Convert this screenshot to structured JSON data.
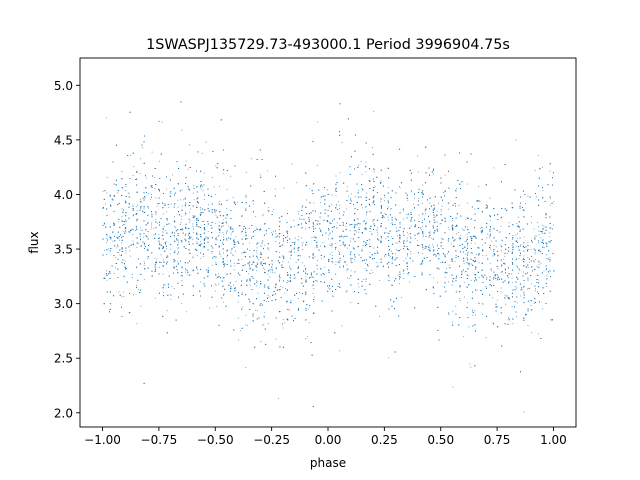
{
  "chart_data": {
    "type": "scatter",
    "title": "1SWASPJ135729.73-493000.1 Period 3996904.75s",
    "xlabel": "phase",
    "ylabel": "flux",
    "xlim": [
      -1.1,
      1.1
    ],
    "ylim": [
      1.87,
      5.25
    ],
    "xticks": [
      -1.0,
      -0.75,
      -0.5,
      -0.25,
      0.0,
      0.25,
      0.5,
      0.75,
      1.0
    ],
    "xtick_labels": [
      "−1.00",
      "−0.75",
      "−0.50",
      "−0.25",
      "0.00",
      "0.25",
      "0.50",
      "0.75",
      "1.00"
    ],
    "yticks": [
      2.0,
      2.5,
      3.0,
      3.5,
      4.0,
      4.5,
      5.0
    ],
    "ytick_labels": [
      "2.0",
      "2.5",
      "3.0",
      "3.5",
      "4.0",
      "4.5",
      "5.0"
    ],
    "grid": false,
    "legend": "none",
    "marker_color": "#1f77b4",
    "series": [
      {
        "phase_range": [
          -1.0,
          1.0
        ],
        "phase_repeat": 1.0,
        "mean_flux_profile": {
          "phase": [
            0.0,
            0.1,
            0.2,
            0.3,
            0.4,
            0.5,
            0.6,
            0.7,
            0.8,
            0.9,
            1.0
          ],
          "flux": [
            3.5,
            3.68,
            3.72,
            3.55,
            3.72,
            3.6,
            3.42,
            3.42,
            3.32,
            3.45,
            3.6
          ]
        },
        "typical_scatter": 0.3,
        "flux_extent": [
          2.0,
          5.1
        ],
        "n_points_approx": 9000
      }
    ]
  }
}
